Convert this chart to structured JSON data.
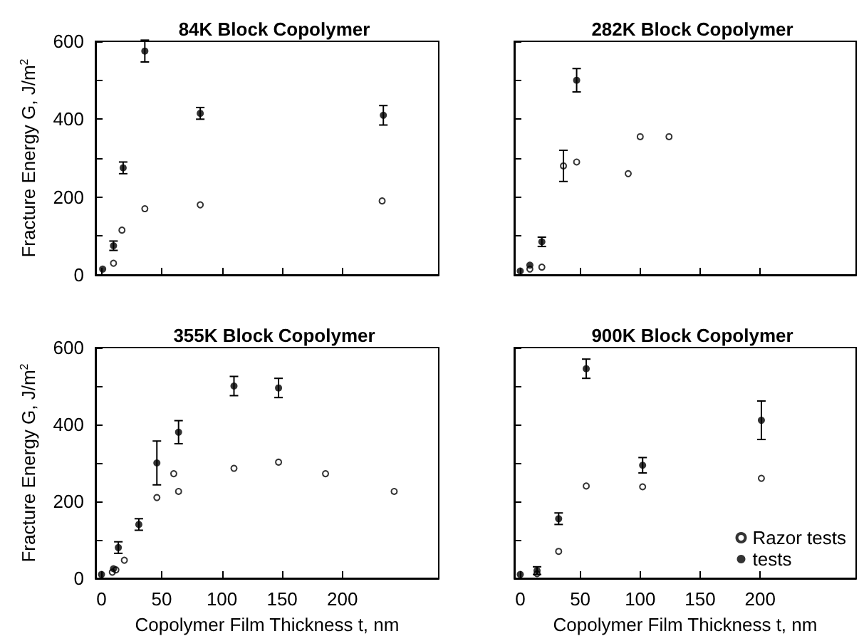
{
  "chart_data": [
    {
      "type": "scatter",
      "title": "84K Block Copolymer",
      "ylabel": "Fracture Energy G, J/m$^{2}$",
      "xlim": [
        -5,
        280
      ],
      "xticks": [
        0,
        50,
        100,
        150,
        200
      ],
      "ylim": [
        0,
        600
      ],
      "yticks": [
        0,
        {
          "value": 100,
          "label": null
        },
        200,
        {
          "value": 300,
          "label": null
        },
        400,
        {
          "value": 500,
          "label": null
        },
        600
      ],
      "tick_labels": "y",
      "marker": "circle",
      "grid": false,
      "series": [
        {
          "color": "#000000",
          "x": [
            10,
            17,
            36,
            82,
            233
          ],
          "values": [
            30,
            115,
            170,
            180,
            190
          ]
        },
        {
          "color": "#000000",
          "x": [
            1,
            10,
            18,
            36,
            82,
            234
          ],
          "values": [
            15,
            75,
            275,
            575,
            415,
            410
          ],
          "errors": [
            null,
            12,
            15,
            28,
            15,
            25
          ]
        }
      ]
    },
    {
      "type": "scatter",
      "title": "282K Block Copolymer",
      "xlim": [
        -5,
        280
      ],
      "xticks": [
        0,
        50,
        100,
        150,
        200
      ],
      "ylim": [
        0,
        600
      ],
      "yticks": [
        0,
        {
          "value": 100,
          "label": null
        },
        200,
        {
          "value": 300,
          "label": null
        },
        400,
        {
          "value": 500,
          "label": null
        },
        600
      ],
      "tick_labels": false,
      "marker": "circle",
      "grid": false,
      "series": [
        {
          "color": "#000000",
          "x": [
            8,
            18,
            36,
            47,
            90,
            100,
            124
          ],
          "values": [
            15,
            20,
            280,
            290,
            260,
            355,
            355
          ],
          "errors": [
            null,
            null,
            40,
            null,
            null,
            null,
            null
          ]
        },
        {
          "color": "#000000",
          "x": [
            0,
            8,
            18,
            47
          ],
          "values": [
            10,
            25,
            85,
            500
          ],
          "errors": [
            null,
            null,
            12,
            30
          ]
        }
      ]
    },
    {
      "type": "scatter",
      "title": "355K Block Copolymer",
      "xlabel": "Copolymer Film Thickness t, nm",
      "ylabel": "Fracture Energy G, J/m$^{2}$",
      "xlim": [
        -5,
        280
      ],
      "xticks": [
        0,
        50,
        100,
        150,
        200
      ],
      "ylim": [
        0,
        600
      ],
      "yticks": [
        0,
        {
          "value": 100,
          "label": null
        },
        200,
        {
          "value": 300,
          "label": null
        },
        400,
        {
          "value": 500,
          "label": null
        },
        600
      ],
      "marker": "circle",
      "grid": false,
      "series": [
        {
          "color": "#000000",
          "x": [
            9,
            12,
            19,
            46,
            60,
            64,
            110,
            147,
            186,
            243
          ],
          "values": [
            16,
            22,
            47,
            210,
            272,
            226,
            286,
            302,
            272,
            226
          ]
        },
        {
          "color": "#000000",
          "x": [
            0,
            10,
            14,
            31,
            46,
            64,
            110,
            147
          ],
          "values": [
            10,
            25,
            80,
            140,
            300,
            380,
            500,
            495
          ],
          "errors": [
            null,
            null,
            15,
            15,
            57,
            30,
            25,
            25
          ]
        }
      ]
    },
    {
      "type": "scatter",
      "title": "900K Block Copolymer",
      "xlabel": "Copolymer Film Thickness t, nm",
      "xlim": [
        -5,
        280
      ],
      "xticks": [
        0,
        50,
        100,
        150,
        200
      ],
      "ylim": [
        0,
        600
      ],
      "yticks": [
        0,
        {
          "value": 100,
          "label": null
        },
        200,
        {
          "value": 300,
          "label": null
        },
        400,
        {
          "value": 500,
          "label": null
        },
        600
      ],
      "tick_labels": "x",
      "marker": "circle",
      "grid": false,
      "legend": "bottom right",
      "series": [
        {
          "name": "Razor tests",
          "color": "#000000",
          "x": [
            14,
            32,
            55,
            102,
            201
          ],
          "values": [
            12,
            70,
            240,
            238,
            260
          ]
        },
        {
          "name": "tests",
          "color": "#000000",
          "x": [
            0,
            14,
            32,
            55,
            102,
            201
          ],
          "values": [
            10,
            20,
            155,
            545,
            294,
            411
          ],
          "errors": [
            null,
            10,
            15,
            25,
            20,
            50
          ]
        }
      ]
    }
  ]
}
